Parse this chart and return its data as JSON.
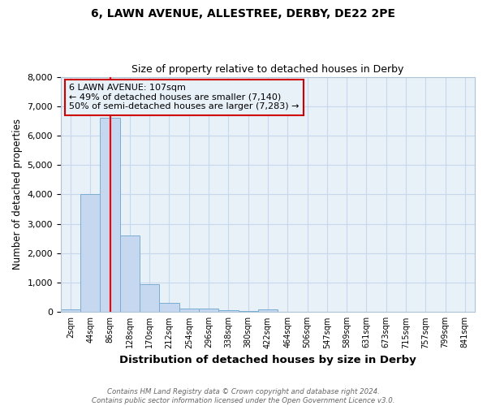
{
  "title1": "6, LAWN AVENUE, ALLESTREE, DERBY, DE22 2PE",
  "title2": "Size of property relative to detached houses in Derby",
  "xlabel": "Distribution of detached houses by size in Derby",
  "ylabel": "Number of detached properties",
  "footnote1": "Contains HM Land Registry data © Crown copyright and database right 2024.",
  "footnote2": "Contains public sector information licensed under the Open Government Licence v3.0.",
  "annotation_line1": "6 LAWN AVENUE: 107sqm",
  "annotation_line2": "← 49% of detached houses are smaller (7,140)",
  "annotation_line3": "50% of semi-detached houses are larger (7,283) →",
  "bar_labels": [
    "2sqm",
    "44sqm",
    "86sqm",
    "128sqm",
    "170sqm",
    "212sqm",
    "254sqm",
    "296sqm",
    "338sqm",
    "380sqm",
    "422sqm",
    "464sqm",
    "506sqm",
    "547sqm",
    "589sqm",
    "631sqm",
    "673sqm",
    "715sqm",
    "757sqm",
    "799sqm",
    "841sqm"
  ],
  "bar_heights": [
    80,
    4000,
    6600,
    2600,
    950,
    320,
    130,
    110,
    50,
    30,
    80,
    0,
    0,
    0,
    0,
    0,
    0,
    0,
    0,
    0,
    0
  ],
  "bar_color": "#c5d8f0",
  "bar_edge_color": "#7aadd4",
  "grid_color": "#c8d8ec",
  "bg_color": "#ffffff",
  "plot_bg_color": "#e8f0f8",
  "red_line_x": 2.5,
  "annotation_box_color": "#cc0000",
  "ylim": [
    0,
    8000
  ],
  "yticks": [
    0,
    1000,
    2000,
    3000,
    4000,
    5000,
    6000,
    7000,
    8000
  ]
}
